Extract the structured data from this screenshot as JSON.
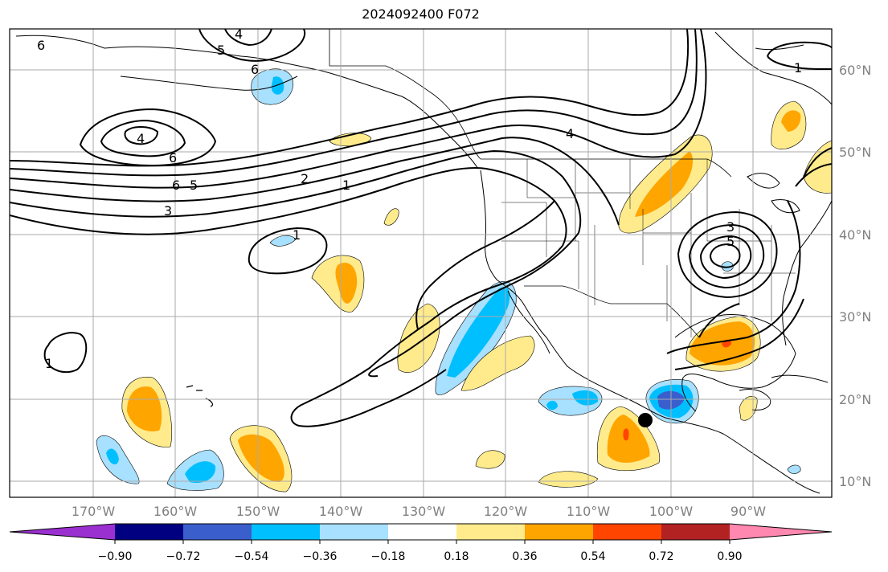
{
  "title": "2024092400 F072",
  "lon_labels": [
    "170°W",
    "160°W",
    "150°W",
    "140°W",
    "130°W",
    "120°W",
    "110°W",
    "100°W",
    "90°W"
  ],
  "lat_labels": [
    "60°N",
    "50°N",
    "40°N",
    "30°N",
    "20°N",
    "10°N"
  ],
  "colorbar": {
    "tick_labels": [
      "−0.90",
      "−0.72",
      "−0.54",
      "−0.36",
      "−0.18",
      "0.18",
      "0.36",
      "0.54",
      "0.72",
      "0.90"
    ],
    "colors": [
      "#9b30d0",
      "#000080",
      "#3a5fcd",
      "#00bfff",
      "#a8e0ff",
      "#ffffff",
      "#ffeb8c",
      "#ffa500",
      "#ff4500",
      "#b22222",
      "#ff88b0"
    ]
  },
  "contour_labels": [
    "6",
    "4",
    "5",
    "6",
    "4",
    "6",
    "6",
    "5",
    "2",
    "1",
    "3",
    "1",
    "4",
    "1",
    "3",
    "5",
    "1"
  ],
  "marker": "storm-center-marker"
}
